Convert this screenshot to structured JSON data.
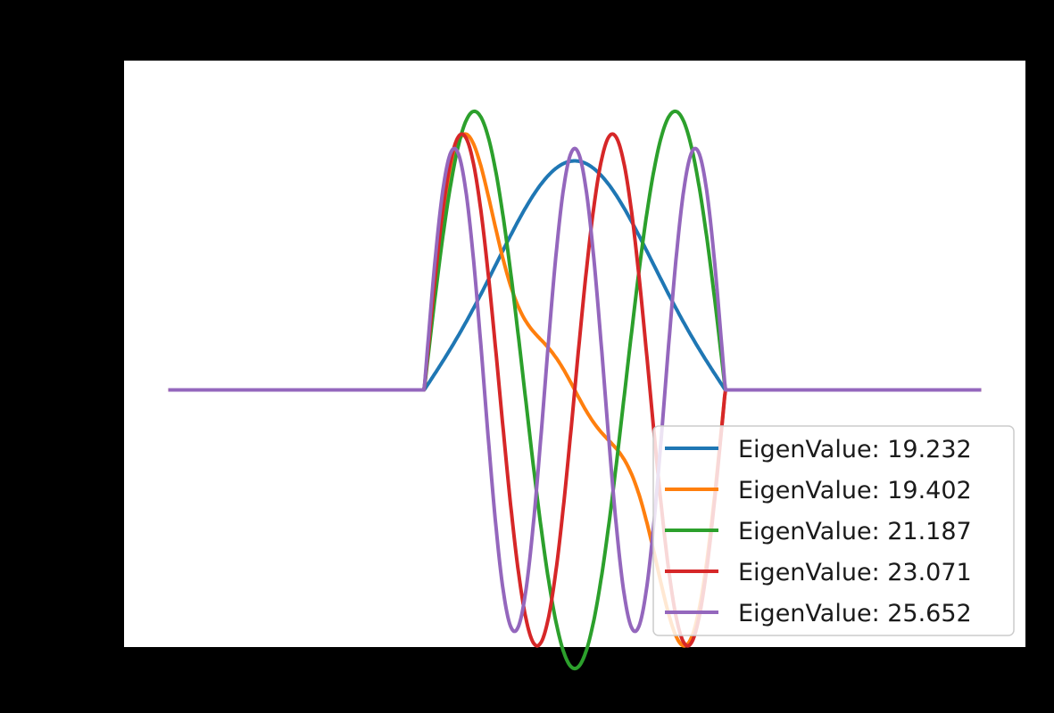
{
  "chart_data": {
    "type": "line",
    "title": "",
    "xlabel": "",
    "ylabel": "",
    "xlim": [
      -1.5,
      1.5
    ],
    "ylim": [
      -1.25,
      1.6
    ],
    "grid": false,
    "legend_position": "bottom-right",
    "series": [
      {
        "name": "EigenValue: 19.232",
        "color": "#1f77b4",
        "kind": "dip",
        "amplitude": 1.11,
        "center_value": 0.52
      },
      {
        "name": "EigenValue: 19.402",
        "color": "#ff7f0e",
        "kind": "odd",
        "amplitude": 1.24
      },
      {
        "name": "EigenValue: 21.187",
        "color": "#2ca02c",
        "kind": "mode3",
        "amplitude": 1.35
      },
      {
        "name": "EigenValue: 23.071",
        "color": "#d62728",
        "kind": "mode4",
        "amplitude": 1.24
      },
      {
        "name": "EigenValue: 25.652",
        "color": "#9467bd",
        "kind": "mode5",
        "amplitude": 1.17
      }
    ]
  }
}
